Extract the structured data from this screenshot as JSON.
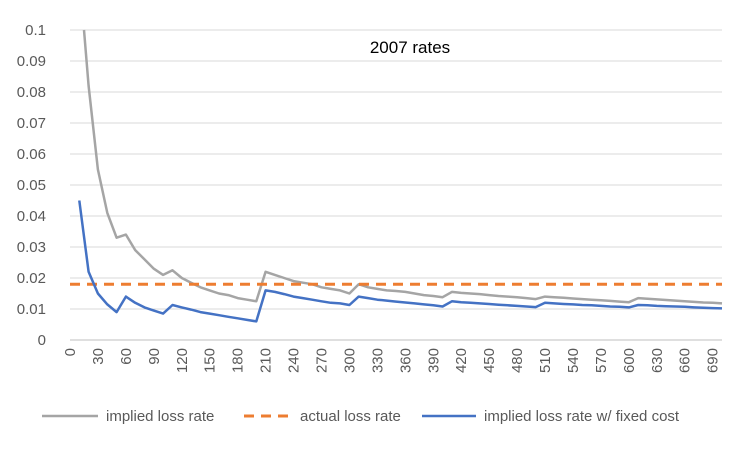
{
  "chart_data": {
    "type": "line",
    "title": "2007 rates",
    "xlabel": "",
    "ylabel": "",
    "xlim": [
      0,
      700
    ],
    "ylim": [
      0,
      0.1
    ],
    "x_ticks": [
      "0",
      "30",
      "60",
      "90",
      "120",
      "150",
      "180",
      "210",
      "240",
      "270",
      "300",
      "330",
      "360",
      "390",
      "420",
      "450",
      "480",
      "510",
      "540",
      "570",
      "600",
      "630",
      "660",
      "690"
    ],
    "y_ticks": [
      "0",
      "0.01",
      "0.02",
      "0.03",
      "0.04",
      "0.05",
      "0.06",
      "0.07",
      "0.08",
      "0.09",
      "0.1"
    ],
    "grid": "horizontal",
    "legend_position": "bottom",
    "series": [
      {
        "name": "implied loss rate",
        "color": "#a5a5a5",
        "style": "solid",
        "x": [
          15,
          20,
          30,
          40,
          50,
          60,
          70,
          80,
          90,
          100,
          110,
          120,
          130,
          140,
          150,
          160,
          170,
          180,
          190,
          200,
          210,
          220,
          230,
          240,
          250,
          260,
          270,
          280,
          290,
          300,
          310,
          320,
          330,
          340,
          350,
          360,
          370,
          380,
          390,
          400,
          410,
          420,
          430,
          440,
          450,
          460,
          470,
          480,
          490,
          500,
          510,
          520,
          530,
          540,
          550,
          560,
          570,
          580,
          590,
          600,
          610,
          620,
          630,
          640,
          650,
          660,
          670,
          680,
          690,
          700
        ],
        "values": [
          0.1,
          0.082,
          0.055,
          0.041,
          0.033,
          0.034,
          0.029,
          0.026,
          0.023,
          0.021,
          0.0225,
          0.02,
          0.0185,
          0.017,
          0.016,
          0.015,
          0.0145,
          0.0135,
          0.013,
          0.0125,
          0.022,
          0.021,
          0.02,
          0.019,
          0.0185,
          0.018,
          0.017,
          0.0165,
          0.016,
          0.015,
          0.018,
          0.017,
          0.0165,
          0.016,
          0.0158,
          0.0155,
          0.015,
          0.0145,
          0.0142,
          0.0138,
          0.0155,
          0.0152,
          0.015,
          0.0148,
          0.0145,
          0.0142,
          0.014,
          0.0138,
          0.0135,
          0.0132,
          0.014,
          0.0138,
          0.0136,
          0.0134,
          0.0132,
          0.013,
          0.0128,
          0.0126,
          0.0124,
          0.0122,
          0.0135,
          0.0133,
          0.0131,
          0.0129,
          0.0127,
          0.0125,
          0.0123,
          0.0121,
          0.012,
          0.0118
        ]
      },
      {
        "name": "actual loss rate",
        "color": "#ed7d31",
        "style": "dashed",
        "x": [
          0,
          700
        ],
        "values": [
          0.018,
          0.018
        ]
      },
      {
        "name": "implied loss rate w/ fixed cost",
        "color": "#4472c4",
        "style": "solid",
        "x": [
          10,
          20,
          30,
          40,
          50,
          60,
          70,
          80,
          90,
          100,
          110,
          120,
          130,
          140,
          150,
          160,
          170,
          180,
          190,
          200,
          210,
          220,
          230,
          240,
          250,
          260,
          270,
          280,
          290,
          300,
          310,
          320,
          330,
          340,
          350,
          360,
          370,
          380,
          390,
          400,
          410,
          420,
          430,
          440,
          450,
          460,
          470,
          480,
          490,
          500,
          510,
          520,
          530,
          540,
          550,
          560,
          570,
          580,
          590,
          600,
          610,
          620,
          630,
          640,
          650,
          660,
          670,
          680,
          690,
          700
        ],
        "values": [
          0.045,
          0.022,
          0.015,
          0.0115,
          0.009,
          0.014,
          0.012,
          0.0105,
          0.0095,
          0.0085,
          0.0113,
          0.0105,
          0.0098,
          0.009,
          0.0085,
          0.008,
          0.0075,
          0.007,
          0.0065,
          0.006,
          0.016,
          0.0155,
          0.0148,
          0.014,
          0.0135,
          0.013,
          0.0125,
          0.012,
          0.0118,
          0.0113,
          0.014,
          0.0135,
          0.013,
          0.0127,
          0.0124,
          0.0121,
          0.0118,
          0.0115,
          0.0112,
          0.0108,
          0.0125,
          0.0122,
          0.012,
          0.0118,
          0.0116,
          0.0114,
          0.0112,
          0.011,
          0.0108,
          0.0106,
          0.012,
          0.0118,
          0.0116,
          0.0115,
          0.0113,
          0.0112,
          0.011,
          0.0108,
          0.0107,
          0.0105,
          0.0113,
          0.0112,
          0.011,
          0.0109,
          0.0108,
          0.0107,
          0.0105,
          0.0104,
          0.0103,
          0.0102
        ]
      }
    ]
  }
}
